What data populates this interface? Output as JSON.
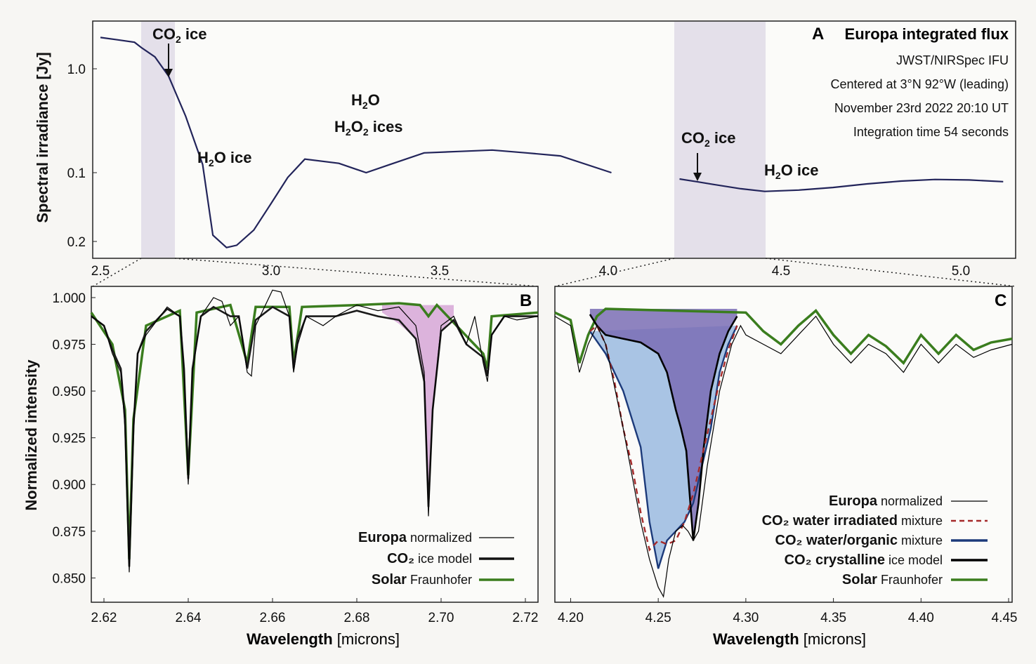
{
  "chart_data": [
    {
      "id": "A",
      "type": "line",
      "panel_label": "A",
      "title": "Europa integrated flux",
      "info_lines": [
        "JWST/NIRSpec IFU",
        "Centered at 3°N 92°W (leading)",
        "November 23rd 2022 20:10 UT",
        "Integration time 54 seconds"
      ],
      "ylabel": "Spectral irradiance [Jy]",
      "xlabel": "",
      "xlim": [
        2.5,
        5.15
      ],
      "yscale": "log",
      "x_ticks": [
        "2.5",
        "3.0",
        "3.5",
        "4.0",
        "4.5",
        "5.0"
      ],
      "y_ticks": [
        "1.0",
        "0.1",
        "0.2"
      ],
      "annotations": [
        "CO2 ice",
        "H2O ice",
        "H2O",
        "H2O2 ices",
        "CO2 ice",
        "H2O ice"
      ],
      "shaded_ranges": [
        [
          2.62,
          2.72
        ],
        [
          4.2,
          4.45
        ]
      ],
      "series": [
        {
          "segment": 1,
          "x": [
            2.5,
            2.55,
            2.6,
            2.62,
            2.66,
            2.7,
            2.75,
            2.8,
            2.83,
            2.87,
            2.9,
            2.95,
            3.0,
            3.05,
            3.1,
            3.2,
            3.28,
            3.35,
            3.45,
            3.55,
            3.65,
            3.75,
            3.85,
            4.0
          ],
          "y": [
            2.0,
            1.9,
            1.8,
            1.6,
            1.3,
            0.85,
            0.35,
            0.12,
            0.025,
            0.019,
            0.02,
            0.028,
            0.05,
            0.09,
            0.135,
            0.123,
            0.1,
            0.12,
            0.155,
            0.16,
            0.165,
            0.155,
            0.145,
            0.1
          ]
        },
        {
          "segment": 2,
          "x": [
            4.2,
            4.25,
            4.3,
            4.38,
            4.45,
            4.55,
            4.65,
            4.75,
            4.85,
            4.95,
            5.05,
            5.15
          ],
          "y": [
            0.087,
            0.082,
            0.077,
            0.07,
            0.066,
            0.068,
            0.072,
            0.078,
            0.083,
            0.086,
            0.085,
            0.082
          ]
        }
      ]
    },
    {
      "id": "B",
      "type": "line",
      "panel_label": "B",
      "xlabel": "Wavelength [microns]",
      "ylabel": "Normalized intensity",
      "xlim": [
        2.617,
        2.723
      ],
      "ylim": [
        0.837,
        1.006
      ],
      "x_ticks": [
        "2.62",
        "2.64",
        "2.66",
        "2.68",
        "2.70",
        "2.72"
      ],
      "y_ticks": [
        "1.000",
        "0.975",
        "0.950",
        "0.925",
        "0.900",
        "0.875",
        "0.850"
      ],
      "legend": [
        {
          "bold": "Europa",
          "rest": " normalized"
        },
        {
          "bold": "CO₂",
          "rest": " ice model"
        },
        {
          "bold": "Solar",
          "rest": " Fraunhofer"
        }
      ],
      "series": [
        {
          "name": "Europa normalized",
          "color": "#000000",
          "x": [
            2.617,
            2.62,
            2.622,
            2.624,
            2.625,
            2.626,
            2.627,
            2.628,
            2.63,
            2.635,
            2.638,
            2.639,
            2.64,
            2.641,
            2.643,
            2.646,
            2.648,
            2.65,
            2.652,
            2.654,
            2.655,
            2.656,
            2.66,
            2.662,
            2.664,
            2.665,
            2.666,
            2.668,
            2.672,
            2.675,
            2.68,
            2.685,
            2.69,
            2.694,
            2.696,
            2.697,
            2.698,
            2.7,
            2.703,
            2.706,
            2.708,
            2.71,
            2.711,
            2.712,
            2.715,
            2.718,
            2.723
          ],
          "y": [
            0.99,
            0.985,
            0.97,
            0.96,
            0.93,
            0.853,
            0.93,
            0.97,
            0.98,
            0.995,
            0.99,
            0.96,
            0.9,
            0.96,
            0.99,
            1.0,
            0.998,
            0.985,
            0.99,
            0.96,
            0.958,
            0.985,
            1.004,
            1.003,
            0.99,
            0.96,
            0.975,
            0.99,
            0.985,
            0.99,
            0.996,
            0.993,
            0.995,
            0.985,
            0.96,
            0.883,
            0.94,
            0.985,
            0.99,
            0.975,
            0.99,
            0.965,
            0.955,
            0.98,
            0.99,
            0.988,
            0.99
          ]
        },
        {
          "name": "CO₂ ice model",
          "color": "#1a1a1a",
          "x": [
            2.617,
            2.62,
            2.622,
            2.624,
            2.625,
            2.626,
            2.627,
            2.628,
            2.63,
            2.635,
            2.638,
            2.639,
            2.64,
            2.641,
            2.643,
            2.646,
            2.65,
            2.652,
            2.654,
            2.656,
            2.66,
            2.664,
            2.665,
            2.666,
            2.668,
            2.675,
            2.68,
            2.685,
            2.69,
            2.694,
            2.696,
            2.697,
            2.698,
            2.7,
            2.703,
            2.706,
            2.71,
            2.711,
            2.712,
            2.715,
            2.723
          ],
          "y": [
            0.99,
            0.985,
            0.972,
            0.962,
            0.935,
            0.856,
            0.93,
            0.97,
            0.982,
            0.994,
            0.99,
            0.962,
            0.903,
            0.962,
            0.99,
            0.995,
            0.99,
            0.99,
            0.962,
            0.988,
            0.995,
            0.99,
            0.962,
            0.978,
            0.99,
            0.99,
            0.993,
            0.99,
            0.988,
            0.978,
            0.955,
            0.888,
            0.94,
            0.982,
            0.988,
            0.975,
            0.968,
            0.958,
            0.98,
            0.99,
            0.99
          ]
        },
        {
          "name": "Solar Fraunhofer",
          "color": "#3a7d1e",
          "x": [
            2.617,
            2.622,
            2.625,
            2.626,
            2.627,
            2.63,
            2.638,
            2.64,
            2.642,
            2.65,
            2.654,
            2.656,
            2.664,
            2.665,
            2.667,
            2.68,
            2.69,
            2.695,
            2.697,
            2.699,
            2.71,
            2.711,
            2.712,
            2.723
          ],
          "y": [
            0.992,
            0.975,
            0.94,
            0.86,
            0.935,
            0.985,
            0.993,
            0.905,
            0.992,
            0.996,
            0.965,
            0.995,
            0.995,
            0.965,
            0.995,
            0.996,
            0.997,
            0.996,
            0.99,
            0.996,
            0.97,
            0.962,
            0.99,
            0.992
          ]
        }
      ]
    },
    {
      "id": "C",
      "type": "line",
      "panel_label": "C",
      "xlabel": "Wavelength [microns]",
      "xlim": [
        4.191,
        4.452
      ],
      "ylim": [
        0.837,
        1.006
      ],
      "x_ticks": [
        "4.20",
        "4.25",
        "4.30",
        "4.35",
        "4.40",
        "4.45"
      ],
      "legend": [
        {
          "bold": "Europa",
          "rest": " normalized"
        },
        {
          "bold": "CO₂ water irradiated",
          "rest": " mixture"
        },
        {
          "bold": "CO₂ water/organic",
          "rest": " mixture"
        },
        {
          "bold": "CO₂ crystalline",
          "rest": " ice model"
        },
        {
          "bold": "Solar",
          "rest": " Fraunhofer"
        }
      ],
      "series": [
        {
          "name": "Europa normalized",
          "color": "#000000",
          "x": [
            4.191,
            4.2,
            4.205,
            4.21,
            4.215,
            4.22,
            4.23,
            4.24,
            4.245,
            4.25,
            4.253,
            4.256,
            4.26,
            4.264,
            4.267,
            4.27,
            4.273,
            4.278,
            4.285,
            4.292,
            4.297,
            4.3,
            4.31,
            4.32,
            4.33,
            4.34,
            4.35,
            4.36,
            4.37,
            4.38,
            4.39,
            4.4,
            4.41,
            4.42,
            4.43,
            4.44,
            4.452
          ],
          "y": [
            0.99,
            0.985,
            0.96,
            0.975,
            0.985,
            0.975,
            0.93,
            0.88,
            0.86,
            0.845,
            0.84,
            0.86,
            0.875,
            0.878,
            0.875,
            0.87,
            0.875,
            0.91,
            0.95,
            0.975,
            0.985,
            0.98,
            0.975,
            0.97,
            0.98,
            0.99,
            0.975,
            0.965,
            0.975,
            0.97,
            0.96,
            0.975,
            0.965,
            0.975,
            0.968,
            0.972,
            0.975
          ]
        },
        {
          "name": "CO₂ water irradiated mixture",
          "color": "#a52a2a",
          "x": [
            4.211,
            4.215,
            4.22,
            4.225,
            4.23,
            4.235,
            4.24,
            4.245,
            4.25,
            4.255,
            4.26,
            4.265,
            4.27,
            4.275,
            4.28,
            4.285,
            4.29,
            4.295
          ],
          "y": [
            0.982,
            0.985,
            0.975,
            0.955,
            0.93,
            0.91,
            0.885,
            0.865,
            0.87,
            0.868,
            0.87,
            0.88,
            0.895,
            0.915,
            0.935,
            0.955,
            0.972,
            0.985
          ]
        },
        {
          "name": "CO₂ water/organic mixture",
          "color": "#1c3a7a",
          "x": [
            4.211,
            4.22,
            4.23,
            4.24,
            4.245,
            4.25,
            4.255,
            4.26,
            4.265,
            4.27,
            4.275,
            4.28,
            4.285,
            4.29,
            4.295
          ],
          "y": [
            0.982,
            0.97,
            0.95,
            0.92,
            0.88,
            0.855,
            0.87,
            0.875,
            0.88,
            0.89,
            0.91,
            0.93,
            0.96,
            0.975,
            0.985
          ]
        },
        {
          "name": "CO₂ crystalline ice model",
          "color": "#000000",
          "x": [
            4.211,
            4.215,
            4.22,
            4.23,
            4.24,
            4.25,
            4.255,
            4.26,
            4.263,
            4.266,
            4.27,
            4.273,
            4.276,
            4.28,
            4.285,
            4.29,
            4.295
          ],
          "y": [
            0.991,
            0.985,
            0.98,
            0.978,
            0.976,
            0.97,
            0.96,
            0.94,
            0.93,
            0.918,
            0.87,
            0.89,
            0.92,
            0.95,
            0.97,
            0.982,
            0.99
          ]
        },
        {
          "name": "Solar Fraunhofer",
          "color": "#3a7d1e",
          "x": [
            4.191,
            4.2,
            4.205,
            4.21,
            4.215,
            4.22,
            4.3,
            4.31,
            4.32,
            4.33,
            4.34,
            4.35,
            4.36,
            4.37,
            4.38,
            4.39,
            4.4,
            4.41,
            4.42,
            4.43,
            4.44,
            4.452
          ],
          "y": [
            0.992,
            0.988,
            0.965,
            0.98,
            0.99,
            0.994,
            0.992,
            0.982,
            0.975,
            0.985,
            0.993,
            0.98,
            0.97,
            0.98,
            0.974,
            0.965,
            0.98,
            0.97,
            0.98,
            0.972,
            0.976,
            0.978
          ]
        }
      ]
    }
  ]
}
